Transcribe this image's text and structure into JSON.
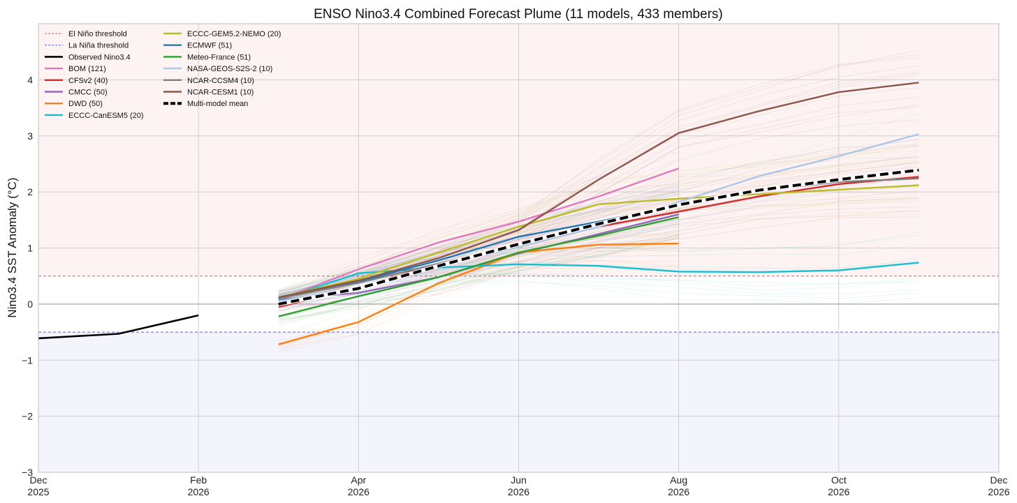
{
  "chart_data": {
    "type": "line",
    "title": "ENSO Nino3.4 Combined Forecast Plume (11 models, 433 members)",
    "ylabel": "Nino3.4 SST Anomaly (°C)",
    "xlabel": "",
    "ylim": [
      -3,
      5
    ],
    "xlim": [
      0,
      12
    ],
    "grid": true,
    "legend_position": "top-left",
    "x_ticks": [
      {
        "pos": 0,
        "line1": "Dec",
        "line2": "2025"
      },
      {
        "pos": 2,
        "line1": "Feb",
        "line2": "2026"
      },
      {
        "pos": 4,
        "line1": "Apr",
        "line2": "2026"
      },
      {
        "pos": 6,
        "line1": "Jun",
        "line2": "2026"
      },
      {
        "pos": 8,
        "line1": "Aug",
        "line2": "2026"
      },
      {
        "pos": 10,
        "line1": "Oct",
        "line2": "2026"
      },
      {
        "pos": 12,
        "line1": "Dec",
        "line2": "2026"
      }
    ],
    "y_ticks": [
      {
        "value": -3,
        "label": "−3"
      },
      {
        "value": -2,
        "label": "−2"
      },
      {
        "value": -1,
        "label": "−1"
      },
      {
        "value": 0,
        "label": "0"
      },
      {
        "value": 1,
        "label": "1"
      },
      {
        "value": 2,
        "label": "2"
      },
      {
        "value": 3,
        "label": "3"
      },
      {
        "value": 4,
        "label": "4"
      }
    ],
    "thresholds": {
      "el_nino": 0.5,
      "la_nina": -0.5,
      "el_nino_color": "#e8575b",
      "la_nina_color": "#5b5bd6",
      "el_nino_region_color": "#fdf3f2",
      "la_nina_region_color": "#f4f4fc"
    },
    "observed": {
      "name": "Observed Nino3.4",
      "color": "#000000",
      "x": [
        0,
        1,
        2
      ],
      "y": [
        -0.61,
        -0.53,
        -0.2
      ]
    },
    "series": [
      {
        "name": "BOM (121)",
        "color": "#e377c2",
        "x": [
          3,
          4,
          5,
          6,
          7,
          8
        ],
        "y": [
          0.08,
          0.62,
          1.1,
          1.47,
          1.92,
          2.42
        ]
      },
      {
        "name": "CFSv2 (40)",
        "color": "#d62728",
        "x": [
          3,
          4,
          5,
          6,
          7,
          8,
          9,
          10,
          11
        ],
        "y": [
          -0.05,
          0.3,
          0.72,
          1.02,
          1.38,
          1.65,
          1.92,
          2.14,
          2.27
        ]
      },
      {
        "name": "CMCC (50)",
        "color": "#9467bd",
        "x": [
          3,
          4,
          5,
          6,
          7,
          8
        ],
        "y": [
          0.08,
          0.2,
          0.48,
          0.9,
          1.25,
          1.6
        ]
      },
      {
        "name": "DWD (50)",
        "color": "#ff7f0e",
        "x": [
          3,
          4,
          5,
          6,
          7,
          8
        ],
        "y": [
          -0.72,
          -0.32,
          0.37,
          0.92,
          1.06,
          1.08
        ]
      },
      {
        "name": "ECCC-CanESM5 (20)",
        "color": "#17becf",
        "x": [
          3,
          4,
          5,
          6,
          7,
          8,
          9,
          10,
          11
        ],
        "y": [
          0.08,
          0.55,
          0.65,
          0.71,
          0.68,
          0.58,
          0.57,
          0.6,
          0.74
        ]
      },
      {
        "name": "ECCC-GEM5.2-NEMO (20)",
        "color": "#bcbd22",
        "x": [
          3,
          4,
          5,
          6,
          7,
          8,
          9,
          10,
          11
        ],
        "y": [
          0.12,
          0.45,
          0.92,
          1.38,
          1.78,
          1.88,
          1.96,
          2.04,
          2.12
        ]
      },
      {
        "name": "ECMWF (51)",
        "color": "#1f77b4",
        "x": [
          3,
          4,
          5,
          6,
          7,
          8
        ],
        "y": [
          0.1,
          0.4,
          0.78,
          1.2,
          1.47,
          1.76
        ]
      },
      {
        "name": "Meteo-France (51)",
        "color": "#2ca02c",
        "x": [
          3,
          4,
          5,
          6,
          7,
          8
        ],
        "y": [
          -0.22,
          0.14,
          0.48,
          0.92,
          1.22,
          1.55
        ]
      },
      {
        "name": "NASA-GEOS-S2S-2 (10)",
        "color": "#aec7e8",
        "x": [
          3,
          4,
          5,
          6,
          7,
          8,
          9,
          10,
          11
        ],
        "y": [
          0.05,
          0.3,
          0.68,
          1.02,
          1.38,
          1.82,
          2.28,
          2.64,
          3.03
        ]
      },
      {
        "name": "NCAR-CCSM4 (10)",
        "color": "#7f7f7f",
        "x": [
          3,
          4,
          5,
          6,
          7,
          8,
          9,
          10,
          11
        ],
        "y": [
          0.1,
          0.38,
          0.72,
          1.05,
          1.42,
          1.78,
          2.02,
          2.18,
          2.24
        ]
      },
      {
        "name": "NCAR-CESM1 (10)",
        "color": "#8c564b",
        "x": [
          3,
          4,
          5,
          6,
          7,
          8,
          9,
          10,
          11
        ],
        "y": [
          0.12,
          0.42,
          0.82,
          1.32,
          2.22,
          3.05,
          3.44,
          3.78,
          3.95
        ]
      }
    ],
    "mean": {
      "name": "Multi-model mean",
      "color": "#000000",
      "x": [
        3,
        4,
        5,
        6,
        7,
        8,
        9,
        10,
        11
      ],
      "y": [
        0.0,
        0.28,
        0.68,
        1.07,
        1.43,
        1.77,
        2.03,
        2.22,
        2.39
      ]
    },
    "legend": {
      "col1": [
        "El Niño threshold",
        "La Niña threshold",
        "Observed Nino3.4",
        "BOM (121)",
        "CFSv2 (40)",
        "CMCC (50)",
        "DWD (50)",
        "ECCC-CanESM5 (20)"
      ],
      "col2": [
        "ECCC-GEM5.2-NEMO (20)",
        "ECMWF (51)",
        "Meteo-France (51)",
        "NASA-GEOS-S2S-2 (10)",
        "NCAR-CCSM4 (10)",
        "NCAR-CESM1 (10)",
        "Multi-model mean"
      ]
    }
  }
}
